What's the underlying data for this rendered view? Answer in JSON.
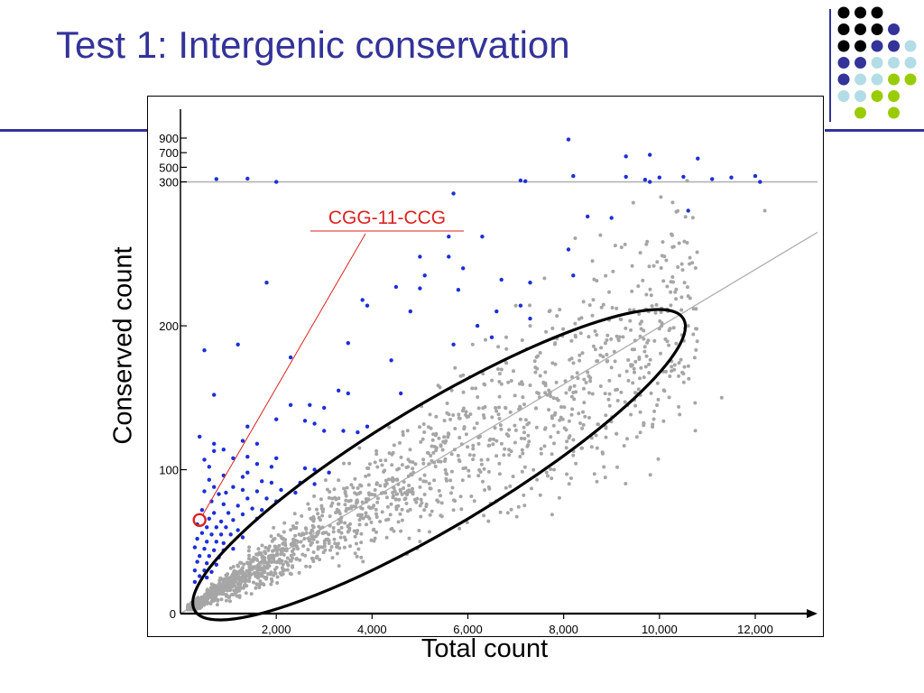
{
  "slide": {
    "title": "Test 1: Intergenic conservation"
  },
  "decor": {
    "accent_navy": "#333399",
    "dot_grid": [
      [
        "black",
        "black",
        "black",
        "none",
        "none"
      ],
      [
        "black",
        "black",
        "black",
        "navy",
        "none"
      ],
      [
        "black",
        "black",
        "navy",
        "navy",
        "light-blue"
      ],
      [
        "navy",
        "navy",
        "light-blue",
        "light-blue",
        "light-blue"
      ],
      [
        "navy",
        "light-blue",
        "light-blue",
        "lime",
        "lime"
      ],
      [
        "light-blue",
        "light-blue",
        "lime",
        "lime",
        "none"
      ],
      [
        "none",
        "lime",
        "none",
        "lime",
        "none"
      ]
    ],
    "dot_colors": {
      "black": "#000000",
      "navy": "#333399",
      "light-blue": "#b3dde6",
      "lime": "#99cc00"
    }
  },
  "chart_data": {
    "type": "scatter",
    "title": "",
    "xlabel": "Total count",
    "ylabel": "Conserved count",
    "xlim": [
      0,
      13300
    ],
    "x_ticks": [
      {
        "value": 2000,
        "label": "2,000"
      },
      {
        "value": 4000,
        "label": "4,000"
      },
      {
        "value": 6000,
        "label": "6,000"
      },
      {
        "value": 8000,
        "label": "8,000"
      },
      {
        "value": 10000,
        "label": "10,000"
      },
      {
        "value": 12000,
        "label": "12,000"
      }
    ],
    "y_ticks": [
      {
        "value": 0,
        "label": "0"
      },
      {
        "value": 100,
        "label": "100"
      },
      {
        "value": 200,
        "label": "200"
      },
      {
        "value": 300,
        "label": "300"
      },
      {
        "value": 500,
        "label": "500"
      },
      {
        "value": 700,
        "label": "700"
      },
      {
        "value": 900,
        "label": "900"
      }
    ],
    "y_scale": "linear from 0 to 300, compressed above 300",
    "reference_line_y": 300,
    "trend_line": [
      [
        0,
        0
      ],
      [
        13300,
        265
      ]
    ],
    "colors": {
      "background_points": "#a6a6a6",
      "outlier_points": "#1c2fd9",
      "highlight": "#dd2222",
      "lines": "#b3b3b3"
    },
    "series": [
      {
        "values": [
          [
            1400,
            345
          ],
          [
            9300,
            650
          ],
          [
            8100,
            880
          ],
          [
            9800,
            670
          ],
          [
            10800,
            620
          ],
          [
            11500,
            360
          ],
          [
            12000,
            380
          ],
          [
            750,
            340
          ],
          [
            2000,
            300
          ],
          [
            7100,
            320
          ],
          [
            7200,
            310
          ],
          [
            8200,
            380
          ],
          [
            9300,
            370
          ],
          [
            9700,
            330
          ],
          [
            9800,
            300
          ],
          [
            10000,
            360
          ],
          [
            10500,
            370
          ],
          [
            10600,
            280
          ],
          [
            11100,
            340
          ],
          [
            12100,
            300
          ],
          [
            5700,
            292
          ],
          [
            8500,
            276
          ],
          [
            9000,
            275
          ],
          [
            5600,
            262
          ],
          [
            6300,
            262
          ],
          [
            8100,
            253
          ],
          [
            5000,
            248
          ],
          [
            5600,
            248
          ],
          [
            5900,
            240
          ],
          [
            8200,
            235
          ],
          [
            5100,
            235
          ],
          [
            1800,
            230
          ],
          [
            6700,
            232
          ],
          [
            7300,
            230
          ],
          [
            4500,
            227
          ],
          [
            5000,
            226
          ],
          [
            5800,
            225
          ],
          [
            3800,
            218
          ],
          [
            3900,
            214
          ],
          [
            7100,
            214
          ],
          [
            4800,
            210
          ],
          [
            6600,
            210
          ],
          [
            7300,
            205
          ],
          [
            6200,
            200
          ],
          [
            6500,
            192
          ],
          [
            1200,
            187
          ],
          [
            3500,
            188
          ],
          [
            5700,
            187
          ],
          [
            500,
            183
          ],
          [
            2300,
            178
          ],
          [
            4400,
            176
          ],
          [
            700,
            152
          ],
          [
            3300,
            155
          ],
          [
            3500,
            153
          ],
          [
            4600,
            153
          ],
          [
            2300,
            145
          ],
          [
            2700,
            145
          ],
          [
            3000,
            143
          ],
          [
            2000,
            135
          ],
          [
            2600,
            134
          ],
          [
            2800,
            132
          ],
          [
            1400,
            130
          ],
          [
            3000,
            127
          ],
          [
            3400,
            127
          ],
          [
            3700,
            126
          ],
          [
            3900,
            130
          ],
          [
            400,
            123
          ],
          [
            1300,
            120
          ],
          [
            1600,
            118
          ],
          [
            700,
            118
          ],
          [
            700,
            113
          ],
          [
            900,
            114
          ],
          [
            500,
            107
          ],
          [
            1100,
            108
          ],
          [
            1400,
            109
          ],
          [
            2000,
            108
          ],
          [
            1600,
            104
          ],
          [
            1900,
            102
          ],
          [
            600,
            102
          ],
          [
            1400,
            98
          ],
          [
            2600,
            101
          ],
          [
            2800,
            100
          ],
          [
            3100,
            98
          ],
          [
            900,
            96
          ],
          [
            1300,
            95
          ],
          [
            1700,
            92
          ],
          [
            1900,
            91
          ],
          [
            2500,
            91
          ],
          [
            2800,
            90
          ],
          [
            600,
            93
          ],
          [
            700,
            88
          ],
          [
            1100,
            88
          ],
          [
            1300,
            86
          ],
          [
            1600,
            85
          ],
          [
            2100,
            86
          ],
          [
            2400,
            84
          ],
          [
            500,
            85
          ],
          [
            800,
            83
          ],
          [
            950,
            84
          ],
          [
            1400,
            80
          ],
          [
            1800,
            80
          ],
          [
            2000,
            78
          ],
          [
            650,
            78
          ],
          [
            900,
            76
          ],
          [
            1200,
            75
          ],
          [
            1500,
            73
          ],
          [
            1700,
            72
          ],
          [
            450,
            72
          ],
          [
            700,
            70
          ],
          [
            1000,
            70
          ],
          [
            1300,
            69
          ],
          [
            1600,
            66
          ],
          [
            600,
            66
          ],
          [
            850,
            64
          ],
          [
            1100,
            65
          ],
          [
            350,
            62
          ],
          [
            550,
            60
          ],
          [
            750,
            60
          ],
          [
            950,
            60
          ],
          [
            1200,
            58
          ],
          [
            450,
            56
          ],
          [
            650,
            55
          ],
          [
            850,
            55
          ],
          [
            1050,
            55
          ],
          [
            1300,
            53
          ],
          [
            350,
            52
          ],
          [
            550,
            50
          ],
          [
            750,
            50
          ],
          [
            900,
            49
          ],
          [
            300,
            46
          ],
          [
            500,
            45
          ],
          [
            700,
            44
          ],
          [
            900,
            44
          ],
          [
            1100,
            45
          ],
          [
            400,
            40
          ],
          [
            600,
            40
          ],
          [
            800,
            39
          ],
          [
            350,
            36
          ],
          [
            550,
            35
          ],
          [
            750,
            34
          ],
          [
            300,
            30
          ],
          [
            500,
            30
          ],
          [
            650,
            29
          ],
          [
            400,
            26
          ],
          [
            550,
            25
          ],
          [
            300,
            22
          ]
        ]
      },
      {
        "values": [
          [
            12200,
            280
          ],
          [
            10300,
            255
          ],
          [
            8600,
            245
          ],
          [
            7600,
            233
          ],
          [
            7000,
            214
          ],
          [
            6100,
            187
          ],
          [
            6800,
            192
          ],
          [
            7300,
            200
          ],
          [
            7700,
            210
          ],
          [
            8900,
            190
          ],
          [
            9500,
            175
          ],
          [
            10400,
            165
          ],
          [
            11300,
            150
          ],
          [
            10600,
            200
          ],
          [
            10000,
            198
          ],
          [
            9400,
            197
          ],
          [
            8900,
            180
          ],
          [
            7100,
            135
          ],
          [
            5300,
            105
          ],
          [
            6600,
            120
          ],
          [
            4700,
            80
          ],
          [
            5700,
            72
          ],
          [
            5000,
            50
          ],
          [
            7800,
            100
          ],
          [
            8200,
            110
          ],
          [
            8700,
            115
          ],
          [
            9100,
            125
          ],
          [
            9600,
            140
          ]
        ]
      }
    ],
    "density_cloud": {
      "x_range": [
        150,
        10800
      ],
      "y_over_x": 0.0195,
      "spread_fraction": 0.22,
      "count": 1700,
      "denser_at_low_x": true
    },
    "highlight": {
      "label": "CGG-11-CCG",
      "point": [
        400,
        65
      ]
    },
    "ellipse": {
      "center": [
        5500,
        103
      ],
      "through": [
        [
          10500,
          205
        ],
        [
          300,
          2
        ]
      ],
      "note": "black outline enclosing the grey point cloud"
    }
  }
}
